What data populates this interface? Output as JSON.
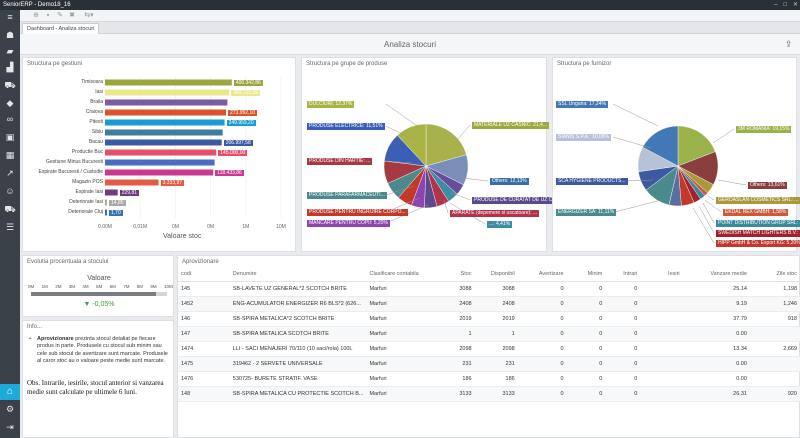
{
  "window": {
    "title": "SeniorERP - Demo18_16"
  },
  "tab": {
    "label": "Dashboard - Analiza stocuri"
  },
  "header": {
    "title": "Analiza stocuri"
  },
  "gestiuni": {
    "title": "Structura pe gestiuni",
    "axis_title": "Valoare stoc",
    "ticks": [
      "0,00M",
      "0,01M",
      "0M",
      "0M",
      "1M",
      "10M"
    ],
    "colors": [
      "#9ca63e",
      "#e9e98b",
      "#7b5aa6",
      "#d9542b",
      "#1a9bd1",
      "#3e7e9c",
      "#3a5aa6",
      "#e44f6b",
      "#4a6cc3",
      "#c93a8f",
      "#e55a43",
      "#6f3c82",
      "#a8a8a8",
      "#3573b5",
      "#5b9a40"
    ],
    "categories": [
      "Timisoara",
      "Iasi",
      "Braila",
      "Craiova",
      "Pitesti",
      "Sibiu",
      "Bacau",
      "Productie Buc",
      "Gestiune Minus Bucuresti",
      "Expirate Bucuresti / Custodie",
      "Magazin POS",
      "Expirate Iasi",
      "Deteriorate Iasi",
      "Deteriorate Cluj"
    ],
    "value_labels": [
      "400.342,86",
      "342.121,06",
      "",
      "273.992,10",
      "249.959,20",
      "",
      "206.997,58",
      "145.000,00",
      "",
      "118.433,86",
      "3.333,97",
      "229,81",
      "14,85",
      "1,70"
    ]
  },
  "grupe": {
    "title": "Structura pe grupe de produse",
    "labels": [
      {
        "text": "DULCIURI: 12,37%",
        "color": "#a9b444"
      },
      {
        "text": "PRODUSE ELECTRICE: 11,51%",
        "color": "#3b5fb5"
      },
      {
        "text": "PRODUSE DIN HARTIE: ...",
        "color": "#a63a43"
      },
      {
        "text": "PRODUSE PARAFARMACEUTI...",
        "color": "#4a8a8c"
      },
      {
        "text": "PRODUSE PENTRU INGRIJIRE CORPO...",
        "color": "#c0392b"
      },
      {
        "text": "MANCARE PENTRU COPII: 5,20%",
        "color": "#8e44ad"
      },
      {
        "text": "MATERIALE UZ CASNIC: 21,4...",
        "color": "#9ea83c"
      },
      {
        "text": "Others: 12,13%",
        "color": "#3a6fa6"
      },
      {
        "text": "PRODUSE DE CURATAT DE UZ CASNIC...",
        "color": "#5b4a8c"
      },
      {
        "text": "APARATE (depemere si uscatoare): ...",
        "color": "#b2344b"
      },
      {
        "text": "...: 4,41%",
        "color": "#3b8ea5"
      }
    ]
  },
  "furnizor": {
    "title": "Structura pe furnizor",
    "labels": [
      {
        "text": "SSL Ungaria: 17,24%",
        "color": "#4178b5"
      },
      {
        "text": "SIANIS S.P.A.: 10,08%",
        "color": "#b7c2d6"
      },
      {
        "text": "SCA HYGIENE PRODUCTS...",
        "color": "#3c5aa0"
      },
      {
        "text": "ENERGIZER SA: 11,11%",
        "color": "#4a8a8c"
      },
      {
        "text": "3M ROMANIA: 19,15%",
        "color": "#9ab24a"
      },
      {
        "text": "Others: 13,61%",
        "color": "#8a3f3f"
      },
      {
        "text": "GEROASLAN COSMETICS SRL: ...",
        "color": "#a89a3c"
      },
      {
        "text": "EKDAL REX GMBH: 1,58%",
        "color": "#cf5a3a"
      },
      {
        "text": "POINT DISTRIBUTION GRUP SRL: 2,2...",
        "color": "#3a8a9c"
      },
      {
        "text": "SWEDISH MATCH LIGHTERS B.V.: 2,97%",
        "color": "#a1222f"
      },
      {
        "text": "HIPP GmbH & Co. Export KG: 5,20%",
        "color": "#c0392b"
      }
    ]
  },
  "evolutie": {
    "title": "Evolutia procentuala a stocului",
    "label": "Valoare",
    "ticks": [
      "0M",
      "1M",
      "2M",
      "3M",
      "4M",
      "5M",
      "6M",
      "7M",
      "8M",
      "9M",
      "10M"
    ],
    "value": "-0,05%",
    "level": 0.92
  },
  "info": {
    "title": "Info...",
    "bullet_bold": "Aprovizionare",
    "bullet_text": " prezinta stocul detaliat pe fiecare produs in parte. Produsele cu stocul sub minim sau cele sub stocul de avertizare sunt marcate. Produsele al caror stoc au o valoare peste medie sunt marcate.",
    "note": "Obs. Intrarile, iesirile, stocul anterior si vanzarea medie sunt calculate pe ultimele 6 luni."
  },
  "aprov": {
    "title": "Aprovizionare",
    "columns": [
      "codi",
      "Denumire",
      "Clasificare contabila",
      "Stoc",
      "Disponibil",
      "Avertizare",
      "Minim",
      "Intrari",
      "Iesiri",
      "Vanzare medie",
      "Zile stoc"
    ],
    "rows": [
      [
        "145",
        "SB-LAVETE UZ GENERAL*2 SCOTCH BRITE",
        "Marfuri",
        "3088",
        "3088",
        "0",
        "0",
        "0",
        "",
        "25.14",
        "1,198"
      ],
      [
        "1452",
        "ENG-ACUMULATOR ENERGIZER R6 BLS*2 (626...",
        "Marfuri",
        "2408",
        "2408",
        "0",
        "0",
        "0",
        "",
        "9.19",
        "1,246"
      ],
      [
        "146",
        "SB-SPIRA METALICA*2 SCOTCH BRITE",
        "Marfuri",
        "2019",
        "2019",
        "0",
        "0",
        "0",
        "",
        "37.79",
        "918"
      ],
      [
        "147",
        "SB-SPIRA METALICA SCOTCH BRITE",
        "Marfuri",
        "1",
        "1",
        "0",
        "0",
        "0",
        "",
        "0.00",
        ""
      ],
      [
        "1474",
        "LLI - SACI MENAJERI 70/110 (10 saci/rola) 100L",
        "Marfuri",
        "2098",
        "2098",
        "0",
        "0",
        "0",
        "",
        "13.34",
        "2,669"
      ],
      [
        "1475",
        "319462 - 2 SERVETE UNIVERSALE",
        "Marfuri",
        "231",
        "231",
        "0",
        "0",
        "0",
        "",
        "0.00",
        ""
      ],
      [
        "1476",
        "530725- BURETE STRATIF. VASE",
        "Marfuri",
        "186",
        "186",
        "0",
        "0",
        "0",
        "",
        "0.00",
        ""
      ],
      [
        "148",
        "SB-SPIRA METALICA CU PROTECTIE SCOTCH B...",
        "Marfuri",
        "3133",
        "3133",
        "0",
        "0",
        "0",
        "",
        "26.31",
        "920"
      ]
    ]
  }
}
